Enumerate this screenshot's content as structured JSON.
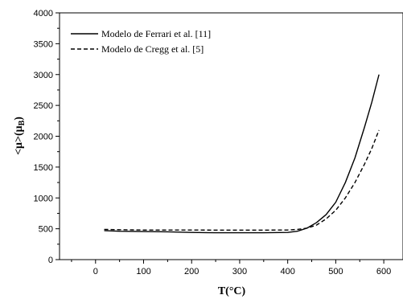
{
  "chart_data": {
    "type": "line",
    "xlabel": "T(°C)",
    "ylabel": "<μ>(μB)",
    "ylabel_parts": {
      "left": "<",
      "mu": "μ",
      "mid": ">(μ",
      "sub": "B",
      "right": ")"
    },
    "xlim": [
      -75,
      640
    ],
    "ylim": [
      0,
      4000
    ],
    "xticks": [
      0,
      100,
      200,
      300,
      400,
      500,
      600
    ],
    "yticks": [
      0,
      500,
      1000,
      1500,
      2000,
      2500,
      3000,
      3500,
      4000
    ],
    "xtick_labels": [
      "0",
      "100",
      "200",
      "300",
      "400",
      "500",
      "600"
    ],
    "ytick_labels": [
      "0",
      "500",
      "1000",
      "1500",
      "2000",
      "2500",
      "3000",
      "3500",
      "4000"
    ],
    "grid": false,
    "legend_position": "top-left",
    "series": [
      {
        "name": "Modelo de Ferrari et al. [11]",
        "style": "solid",
        "color": "#000000",
        "x": [
          18,
          50,
          100,
          150,
          200,
          250,
          300,
          350,
          400,
          420,
          440,
          460,
          480,
          500,
          520,
          540,
          560,
          575,
          590
        ],
        "y": [
          470,
          460,
          455,
          450,
          440,
          435,
          435,
          435,
          440,
          460,
          510,
          600,
          730,
          930,
          1250,
          1650,
          2150,
          2550,
          3000
        ]
      },
      {
        "name": "Modelo de Cregg et al. [5]",
        "style": "dashed",
        "color": "#000000",
        "x": [
          18,
          50,
          100,
          150,
          200,
          250,
          300,
          350,
          400,
          420,
          440,
          460,
          480,
          500,
          520,
          540,
          560,
          575,
          590
        ],
        "y": [
          490,
          485,
          480,
          480,
          480,
          478,
          478,
          478,
          480,
          490,
          510,
          560,
          660,
          800,
          1000,
          1250,
          1550,
          1800,
          2100
        ]
      }
    ]
  }
}
